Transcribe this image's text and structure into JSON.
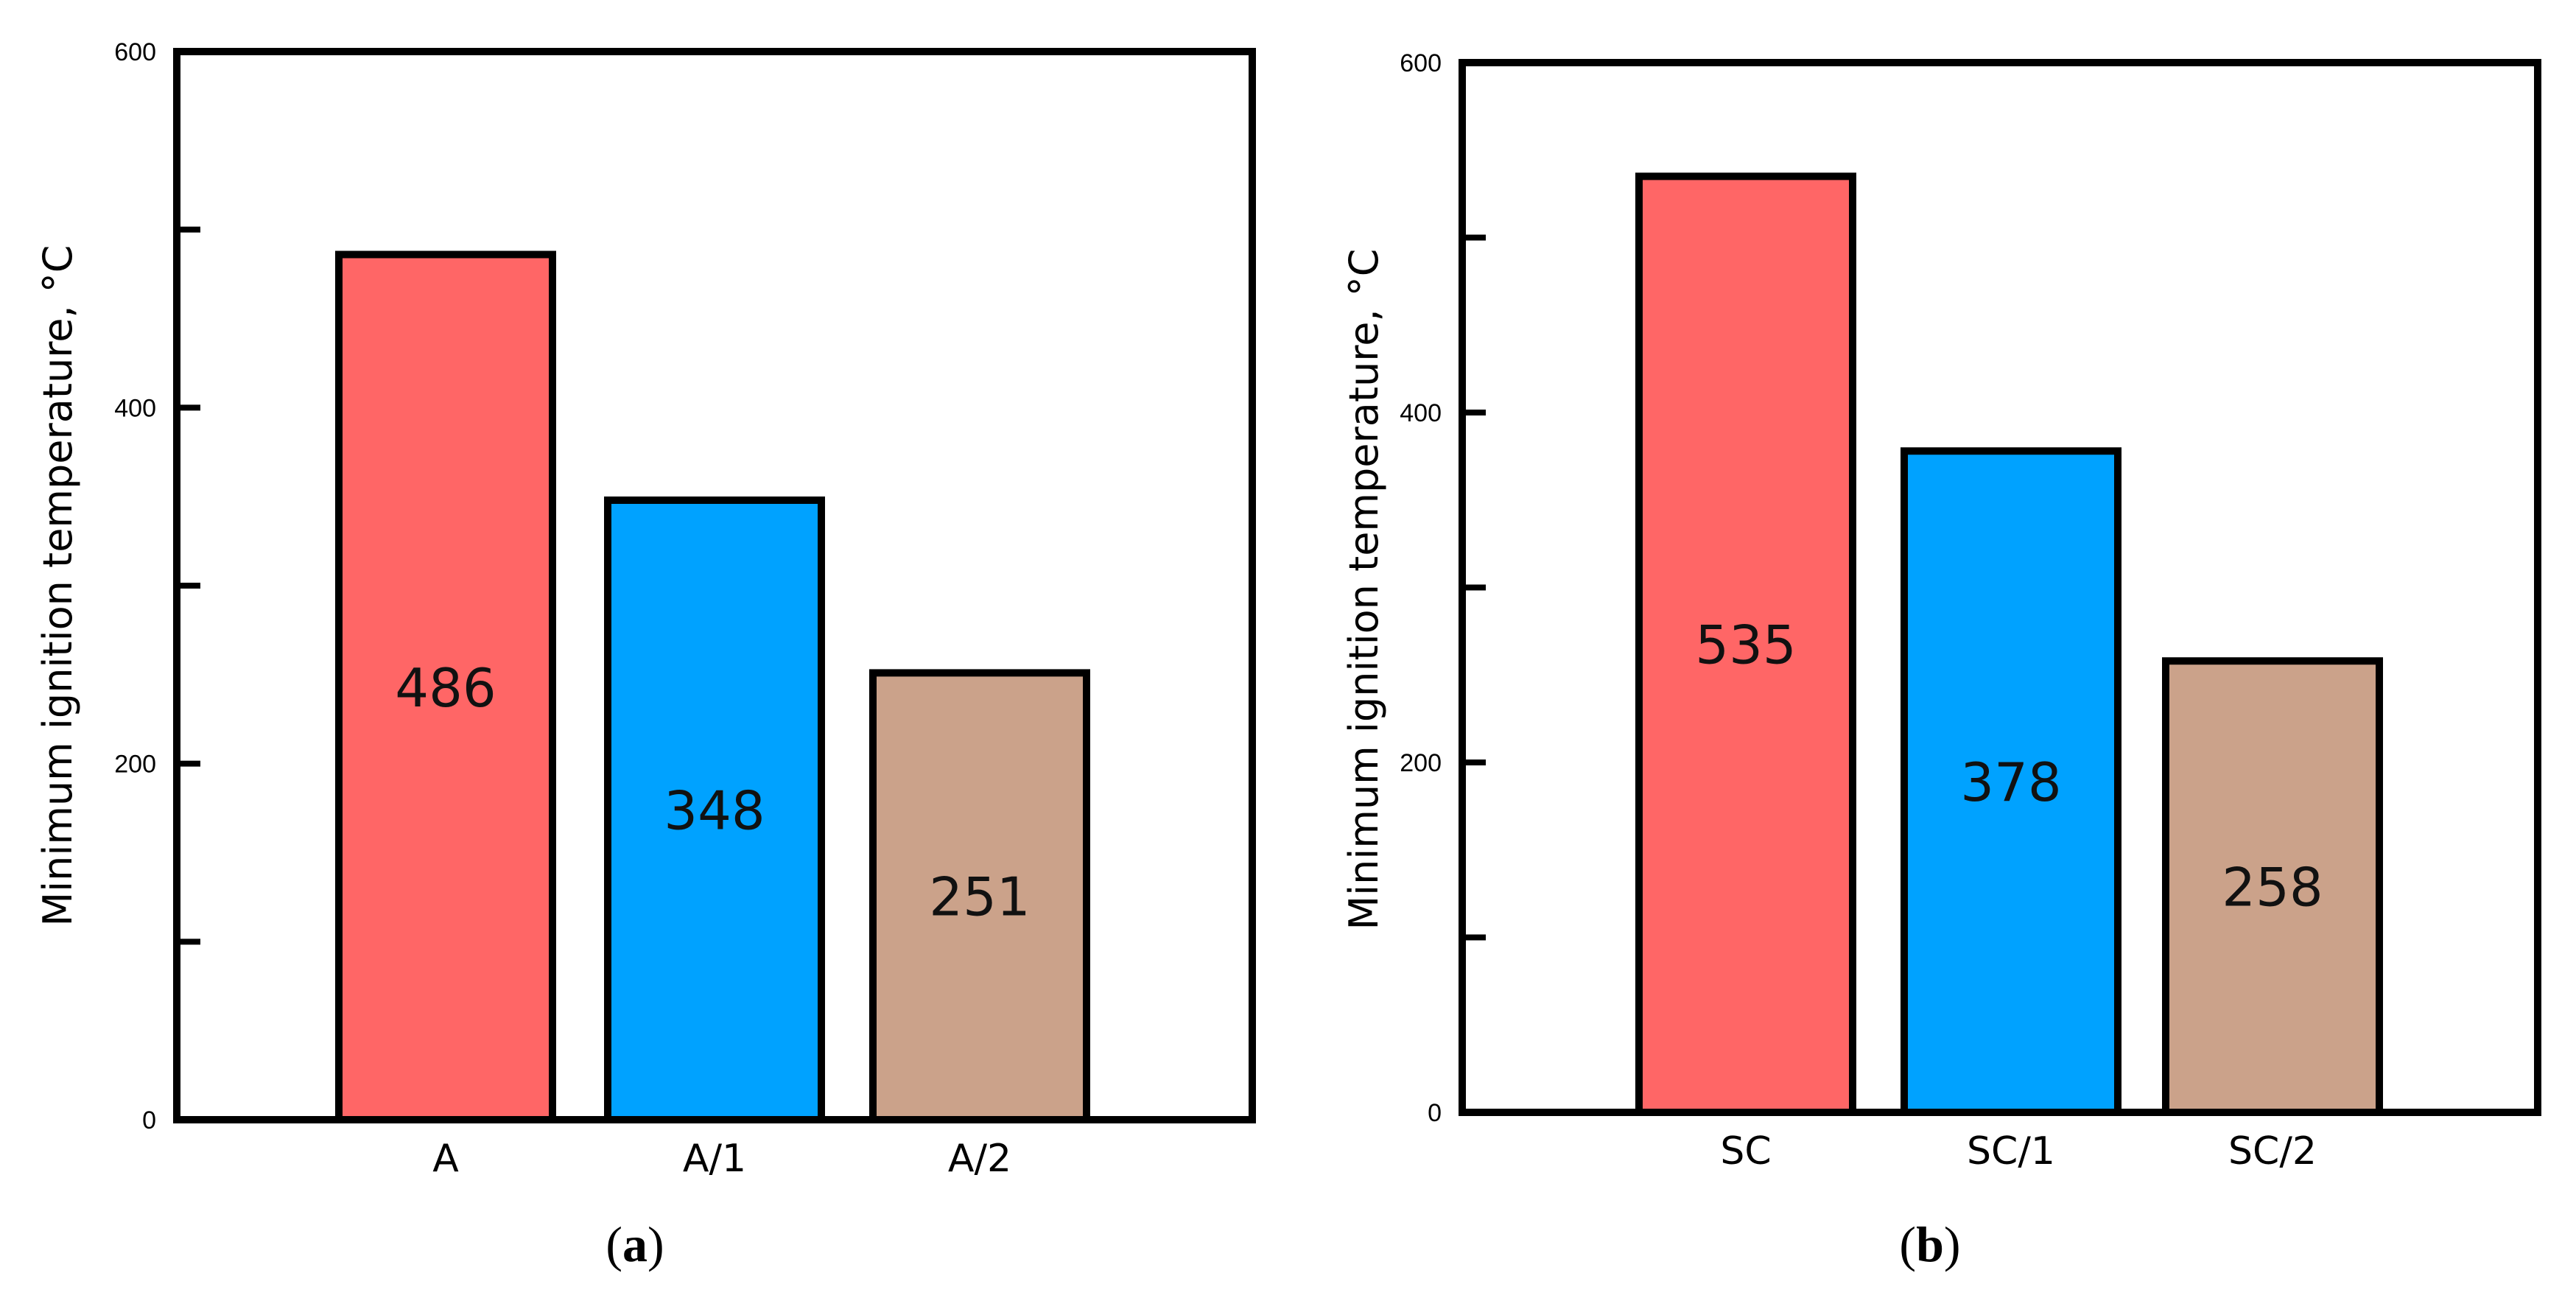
{
  "chart_data": [
    {
      "type": "bar",
      "panel": "a",
      "panel_label_open": "(",
      "panel_label_letter": "a",
      "panel_label_close": ")",
      "title": "",
      "xlabel": "",
      "ylabel": "Minimum ignition temperature, °C",
      "ylim": [
        0,
        600
      ],
      "yticks": [
        0,
        100,
        200,
        300,
        400,
        500,
        600
      ],
      "yticklabels": [
        "0",
        "",
        "200",
        "",
        "400",
        "",
        "600"
      ],
      "categories": [
        "A",
        "A/1",
        "A/2"
      ],
      "values": [
        486,
        348,
        251
      ],
      "data_labels": [
        "486",
        "348",
        "251"
      ],
      "colors": [
        "#ff6666",
        "#00a2ff",
        "#cba28a"
      ],
      "grid": false,
      "legend": "none"
    },
    {
      "type": "bar",
      "panel": "b",
      "panel_label_open": "(",
      "panel_label_letter": "b",
      "panel_label_close": ")",
      "title": "",
      "xlabel": "",
      "ylabel": "Minimum ignition temperature, °C",
      "ylim": [
        0,
        600
      ],
      "yticks": [
        0,
        100,
        200,
        300,
        400,
        500,
        600
      ],
      "yticklabels": [
        "0",
        "",
        "200",
        "",
        "400",
        "",
        "600"
      ],
      "categories": [
        "SC",
        "SC/1",
        "SC/2"
      ],
      "values": [
        535,
        378,
        258
      ],
      "data_labels": [
        "535",
        "378",
        "258"
      ],
      "colors": [
        "#ff6666",
        "#00a2ff",
        "#cba28a"
      ],
      "grid": false,
      "legend": "none"
    }
  ]
}
